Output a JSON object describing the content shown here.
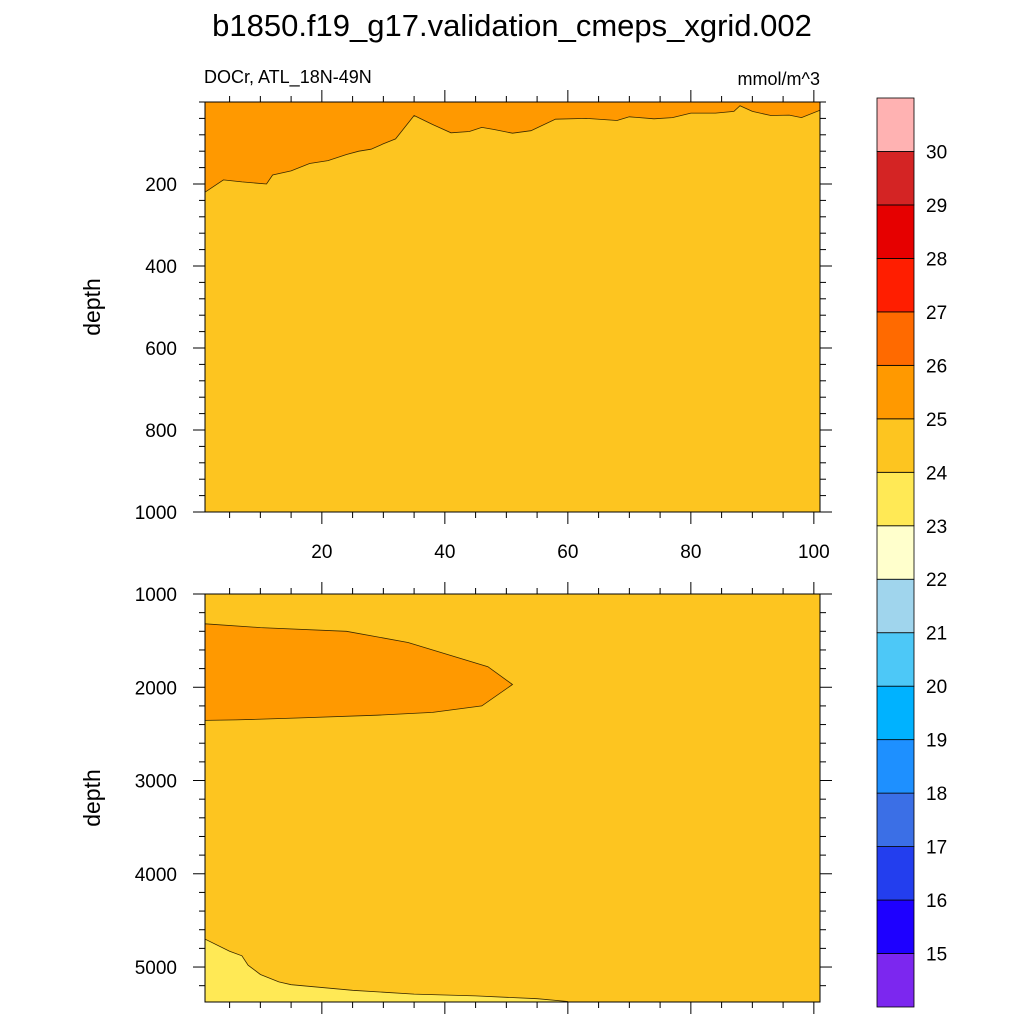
{
  "chart_data": [
    {
      "type": "contour",
      "panel": "upper",
      "title": "b1850.f19_g17.validation_cmeps_xgrid.002",
      "left_label": "DOCr, ATL_18N-49N",
      "right_label": "mmol/m^3",
      "xlabel": "",
      "ylabel": "depth",
      "xlim": [
        1,
        101
      ],
      "ylim": [
        1000,
        0
      ],
      "x_ticks": [
        20,
        40,
        60,
        80,
        100
      ],
      "x_tick_labels": [
        "20",
        "40",
        "60",
        "80",
        "100"
      ],
      "y_ticks": [
        200,
        400,
        600,
        800,
        1000
      ],
      "y_tick_labels": [
        "200",
        "400",
        "600",
        "800",
        "1000"
      ],
      "fill_base_value": 24.5,
      "regions": [
        {
          "name": "25-26 band",
          "level_range": [
            25,
            26
          ],
          "color": "#ff9900",
          "boundary_x": [
            1,
            4,
            7,
            11,
            12,
            15,
            18,
            21,
            24,
            26,
            28,
            30,
            32,
            35,
            38,
            41,
            44,
            46,
            48,
            51,
            54,
            58,
            63,
            68,
            70,
            74,
            77,
            80,
            84,
            87,
            88,
            90,
            93,
            96,
            98,
            101
          ],
          "boundary_depth": [
            220,
            190,
            195,
            200,
            178,
            168,
            150,
            143,
            128,
            120,
            115,
            102,
            90,
            33,
            55,
            75,
            72,
            62,
            67,
            76,
            70,
            42,
            40,
            45,
            36,
            41,
            38,
            27,
            27,
            23,
            9,
            23,
            33,
            32,
            38,
            20
          ]
        }
      ]
    },
    {
      "type": "contour",
      "panel": "lower",
      "xlabel": "",
      "ylabel": "depth",
      "xlim": [
        1,
        101
      ],
      "ylim": [
        5375,
        1000
      ],
      "x_ticks": [
        20,
        40,
        60,
        80,
        100
      ],
      "y_ticks": [
        1000,
        2000,
        3000,
        4000,
        5000
      ],
      "y_tick_labels": [
        "1000",
        "2000",
        "3000",
        "4000",
        "5000"
      ],
      "fill_base_value": 24.5,
      "regions": [
        {
          "name": "25-26 tongue",
          "level_range": [
            25,
            26
          ],
          "color": "#ff9900",
          "boundary_x": [
            1,
            10,
            24,
            34,
            47,
            51,
            46,
            38,
            29,
            16,
            6,
            1
          ],
          "boundary_depth": [
            1320,
            1360,
            1400,
            1520,
            1780,
            1970,
            2200,
            2270,
            2300,
            2330,
            2350,
            2355
          ]
        },
        {
          "name": "23-24 bottom layer",
          "level_range": [
            23,
            24
          ],
          "color": "#ffe955",
          "boundary_x": [
            1,
            5,
            7,
            8,
            10,
            13,
            15,
            25,
            35,
            45,
            55,
            60
          ],
          "boundary_depth": [
            4700,
            4830,
            4880,
            4980,
            5080,
            5160,
            5190,
            5250,
            5290,
            5310,
            5340,
            5370
          ]
        }
      ]
    }
  ],
  "colorbar": {
    "levels": [
      "15",
      "16",
      "17",
      "18",
      "19",
      "20",
      "21",
      "22",
      "23",
      "24",
      "25",
      "26",
      "27",
      "28",
      "29",
      "30"
    ],
    "colors": [
      "#7c27ef",
      "#1e00ff",
      "#233eee",
      "#3b6fe6",
      "#1e90ff",
      "#00b2ff",
      "#4dc8f7",
      "#a0d5ed",
      "#ffffcc",
      "#ffe955",
      "#fdc520",
      "#ff9900",
      "#ff6a00",
      "#ff1e00",
      "#e60000",
      "#d42424",
      "#ffb2b2"
    ]
  }
}
